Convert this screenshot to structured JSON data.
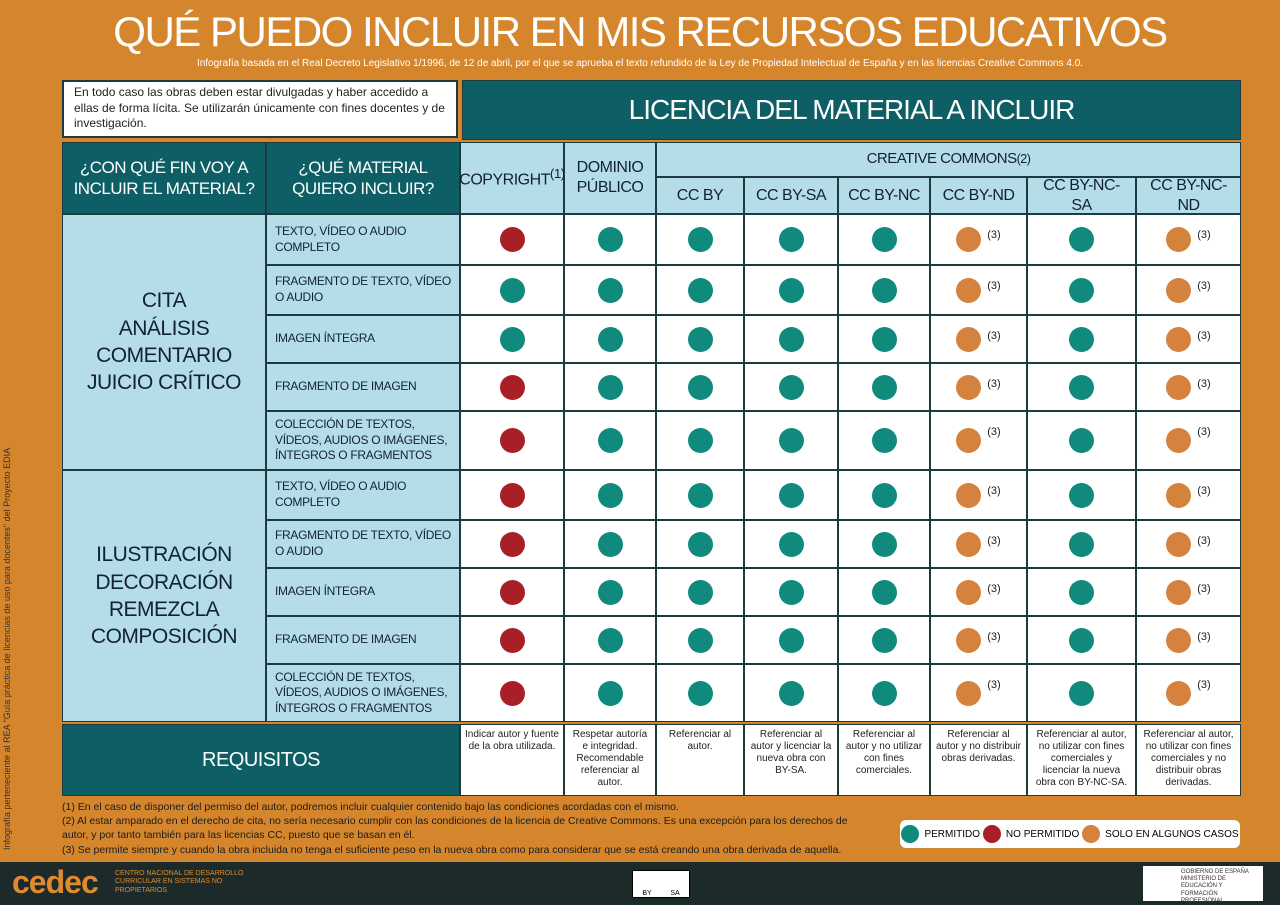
{
  "header": {
    "title": "QUÉ PUEDO INCLUIR EN MIS RECURSOS EDUCATIVOS",
    "subtitle": "Infografía basada en el Real Decreto Legislativo 1/1996, de 12 de abril, por el que se aprueba el texto refundido de la Ley de Propiedad Intelectual de España y en las licencias Creative Commons 4.0."
  },
  "note": "En todo caso las obras deben estar divulgadas y haber accedido a ellas de forma lícita. Se utilizarán únicamente con fines docentes y de investigación.",
  "license_header": "LICENCIA DEL MATERIAL A INCLUIR",
  "table": {
    "purpose_header": "¿CON QUÉ FIN VOY A INCLUIR EL MATERIAL?",
    "material_header": "¿QUÉ MATERIAL QUIERO INCLUIR?",
    "cc_group": {
      "label": "CREATIVE COMMONS",
      "note": "(2)"
    },
    "columns": [
      {
        "label": "COPYRIGHT",
        "note": "(1)"
      },
      {
        "label": "DOMINIO PÚBLICO"
      },
      {
        "label": "CC BY"
      },
      {
        "label": "CC BY-SA"
      },
      {
        "label": "CC BY-NC"
      },
      {
        "label": "CC BY-ND",
        "cell_note": "(3)"
      },
      {
        "label": "CC BY-NC-SA"
      },
      {
        "label": "CC BY-NC-ND",
        "cell_note": "(3)"
      }
    ],
    "groups": [
      {
        "purposes": [
          "CITA",
          "ANÁLISIS",
          "COMENTARIO",
          "JUICIO CRÍTICO"
        ],
        "rows": [
          {
            "material": "TEXTO, VÍDEO O AUDIO COMPLETO",
            "cells": [
              "NO PERMITIDO",
              "PERMITIDO",
              "PERMITIDO",
              "PERMITIDO",
              "PERMITIDO",
              "SOLO EN ALGUNOS CASOS",
              "PERMITIDO",
              "SOLO EN ALGUNOS CASOS"
            ]
          },
          {
            "material": "FRAGMENTO DE TEXTO, VÍDEO O AUDIO",
            "cells": [
              "PERMITIDO",
              "PERMITIDO",
              "PERMITIDO",
              "PERMITIDO",
              "PERMITIDO",
              "SOLO EN ALGUNOS CASOS",
              "PERMITIDO",
              "SOLO EN ALGUNOS CASOS"
            ]
          },
          {
            "material": "IMAGEN ÍNTEGRA",
            "cells": [
              "PERMITIDO",
              "PERMITIDO",
              "PERMITIDO",
              "PERMITIDO",
              "PERMITIDO",
              "SOLO EN ALGUNOS CASOS",
              "PERMITIDO",
              "SOLO EN ALGUNOS CASOS"
            ]
          },
          {
            "material": "FRAGMENTO DE IMAGEN",
            "cells": [
              "NO PERMITIDO",
              "PERMITIDO",
              "PERMITIDO",
              "PERMITIDO",
              "PERMITIDO",
              "SOLO EN ALGUNOS CASOS",
              "PERMITIDO",
              "SOLO EN ALGUNOS CASOS"
            ]
          },
          {
            "material": "COLECCIÓN DE TEXTOS, VÍDEOS, AUDIOS O IMÁGENES, ÍNTEGROS O FRAGMENTOS",
            "cells": [
              "NO PERMITIDO",
              "PERMITIDO",
              "PERMITIDO",
              "PERMITIDO",
              "PERMITIDO",
              "SOLO EN ALGUNOS CASOS",
              "PERMITIDO",
              "SOLO EN ALGUNOS CASOS"
            ]
          }
        ]
      },
      {
        "purposes": [
          "ILUSTRACIÓN",
          "DECORACIÓN",
          "REMEZCLA",
          "COMPOSICIÓN"
        ],
        "rows": [
          {
            "material": "TEXTO, VÍDEO O AUDIO COMPLETO",
            "cells": [
              "NO PERMITIDO",
              "PERMITIDO",
              "PERMITIDO",
              "PERMITIDO",
              "PERMITIDO",
              "SOLO EN ALGUNOS CASOS",
              "PERMITIDO",
              "SOLO EN ALGUNOS CASOS"
            ]
          },
          {
            "material": "FRAGMENTO DE TEXTO, VÍDEO O AUDIO",
            "cells": [
              "NO PERMITIDO",
              "PERMITIDO",
              "PERMITIDO",
              "PERMITIDO",
              "PERMITIDO",
              "SOLO EN ALGUNOS CASOS",
              "PERMITIDO",
              "SOLO EN ALGUNOS CASOS"
            ]
          },
          {
            "material": "IMAGEN ÍNTEGRA",
            "cells": [
              "NO PERMITIDO",
              "PERMITIDO",
              "PERMITIDO",
              "PERMITIDO",
              "PERMITIDO",
              "SOLO EN ALGUNOS CASOS",
              "PERMITIDO",
              "SOLO EN ALGUNOS CASOS"
            ]
          },
          {
            "material": "FRAGMENTO DE IMAGEN",
            "cells": [
              "NO PERMITIDO",
              "PERMITIDO",
              "PERMITIDO",
              "PERMITIDO",
              "PERMITIDO",
              "SOLO EN ALGUNOS CASOS",
              "PERMITIDO",
              "SOLO EN ALGUNOS CASOS"
            ]
          },
          {
            "material": "COLECCIÓN DE TEXTOS, VÍDEOS, AUDIOS O IMÁGENES, ÍNTEGROS O FRAGMENTOS",
            "cells": [
              "NO PERMITIDO",
              "PERMITIDO",
              "PERMITIDO",
              "PERMITIDO",
              "PERMITIDO",
              "SOLO EN ALGUNOS CASOS",
              "PERMITIDO",
              "SOLO EN ALGUNOS CASOS"
            ]
          }
        ]
      }
    ],
    "requirements_label": "REQUISITOS",
    "requirements": [
      "Indicar autor y fuente de la obra utilizada.",
      "Respetar autoría e integridad. Recomendable referenciar al autor.",
      "Referenciar al autor.",
      "Referenciar al autor y licenciar la nueva obra con BY-SA.",
      "Referenciar al autor y no utilizar con fines comerciales.",
      "Referenciar al autor y no distribuir obras derivadas.",
      "Referenciar al autor, no utilizar con fines comerciales y licenciar la nueva obra con BY-NC-SA.",
      "Referenciar al autor, no utilizar con fines comerciales y no distribuir obras derivadas."
    ]
  },
  "footnotes": [
    "(1) En el caso de disponer del permiso del autor, podremos incluir cualquier contenido bajo las condiciones acordadas con el mismo.",
    "(2) Al estar amparado en el derecho de cita, no sería necesario cumplir con las condiciones de la licencia de Creative Commons. Es una excepción para los derechos de autor, y por tanto también para las licencias CC, puesto que se basan en él.",
    "(3) Se permite siempre y cuando la obra incluida no tenga el suficiente peso en la nueva obra como para considerar que se está creando una obra derivada de aquella."
  ],
  "legend": [
    {
      "label": "PERMITIDO",
      "color": "#0f8a7d"
    },
    {
      "label": "NO PERMITIDO",
      "color": "#a81f25"
    },
    {
      "label": "SOLO EN ALGUNOS CASOS",
      "color": "#d5823e"
    }
  ],
  "side_note": "Infografía perteneciente al REA \"Guía práctica de licencias de uso para docentes\" del Proyecto EDIA",
  "footer": {
    "logo": "cedec",
    "org": "CENTRO NACIONAL DE DESARROLLO CURRICULAR EN SISTEMAS NO PROPIETARIOS",
    "cc_terms": [
      "BY",
      "SA"
    ],
    "gov": "GOBIERNO DE ESPAÑA",
    "ministry": "MINISTERIO DE EDUCACIÓN Y FORMACIÓN PROFESIONAL"
  }
}
